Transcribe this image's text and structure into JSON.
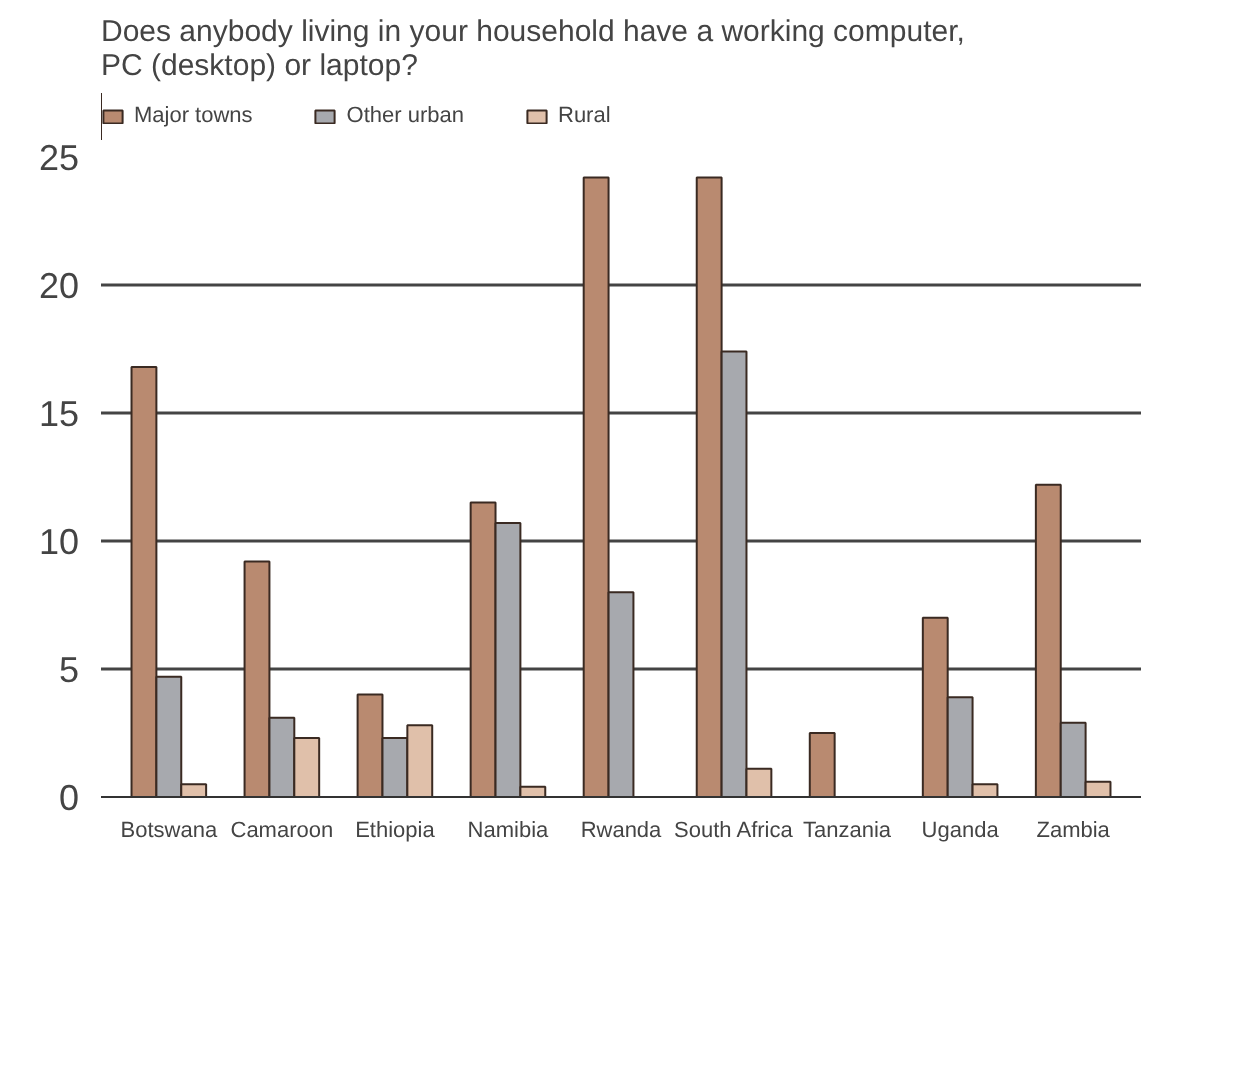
{
  "chart_data": {
    "type": "bar",
    "title": "Does anybody living in your household have a working computer, PC (desktop) or laptop?",
    "categories": [
      "Botswana",
      "Camaroon",
      "Ethiopia",
      "Namibia",
      "Rwanda",
      "South Africa",
      "Tanzania",
      "Uganda",
      "Zambia"
    ],
    "series": [
      {
        "name": "Major towns",
        "color": "#b98a70",
        "values": [
          16.8,
          9.2,
          4.0,
          11.5,
          24.2,
          24.2,
          2.5,
          7.0,
          12.2
        ]
      },
      {
        "name": "Other urban",
        "color": "#a7a9ae",
        "values": [
          4.7,
          3.1,
          2.3,
          10.7,
          8.0,
          17.4,
          null,
          3.9,
          2.9
        ]
      },
      {
        "name": "Rural",
        "color": "#e0c0aa",
        "values": [
          0.5,
          2.3,
          2.8,
          0.4,
          null,
          1.1,
          null,
          0.5,
          0.6
        ]
      }
    ],
    "ylim": [
      0,
      25
    ],
    "yticks": [
      0,
      5,
      10,
      15,
      20,
      25
    ],
    "grid": "y",
    "legend": "top"
  }
}
